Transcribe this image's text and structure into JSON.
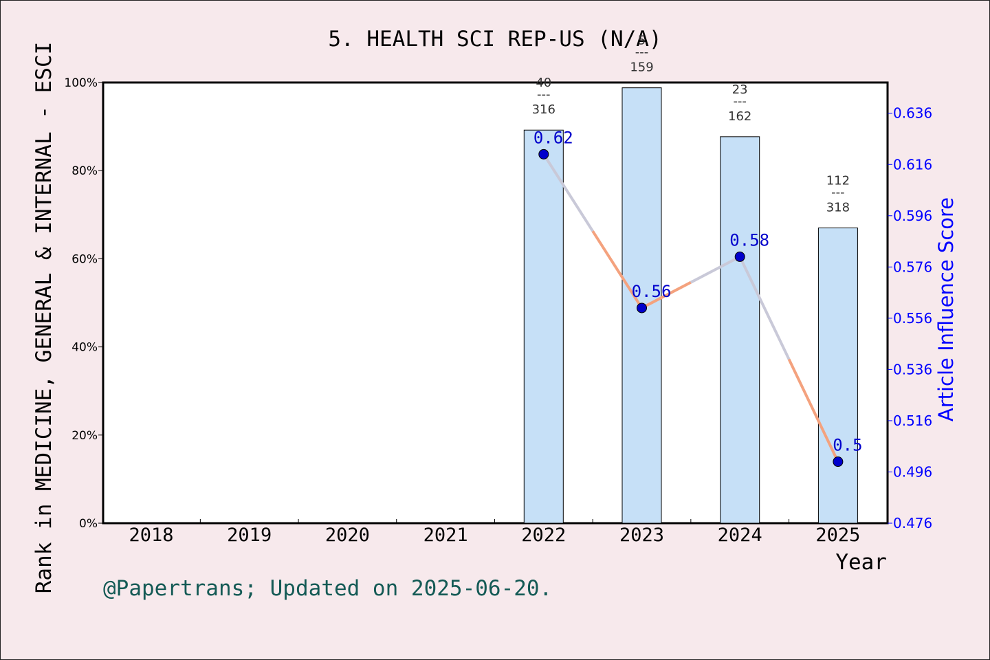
{
  "chart_data": {
    "type": "bar",
    "title": "5. HEALTH SCI REP-US (N/A)",
    "xlabel": "Year",
    "ylabel_left": "Rank in MEDICINE, GENERAL & INTERNAL - ESCI",
    "ylabel_right": "Article Influence Score",
    "categories": [
      "2018",
      "2019",
      "2020",
      "2021",
      "2022",
      "2023",
      "2024",
      "2025"
    ],
    "left_axis": {
      "ylim": [
        0,
        100
      ],
      "ticks": [
        "0%",
        "20%",
        "40%",
        "60%",
        "80%",
        "100%"
      ]
    },
    "right_axis": {
      "ylim": [
        0.476,
        0.648
      ],
      "ticks": [
        "0.476",
        "0.496",
        "0.516",
        "0.536",
        "0.556",
        "0.576",
        "0.596",
        "0.616",
        "0.636"
      ]
    },
    "bars": [
      {
        "year": "2022",
        "value": 89.2,
        "rank_label": "40",
        "total_label": "316",
        "sep": "---"
      },
      {
        "year": "2023",
        "value": 98.8,
        "rank_label": "5",
        "total_label": "159",
        "sep": "---"
      },
      {
        "year": "2024",
        "value": 87.7,
        "rank_label": "23",
        "total_label": "162",
        "sep": "---"
      },
      {
        "year": "2025",
        "value": 67.0,
        "rank_label": "112",
        "total_label": "318",
        "sep": "---"
      }
    ],
    "line": [
      {
        "year": "2022",
        "value": 0.62,
        "label": "0.62"
      },
      {
        "year": "2023",
        "value": 0.56,
        "label": "0.56"
      },
      {
        "year": "2024",
        "value": 0.58,
        "label": "0.58"
      },
      {
        "year": "2025",
        "value": 0.5,
        "label": "0.5"
      }
    ],
    "colors": {
      "bar_fill": "#c6e0f7",
      "bar_stroke": "#000000",
      "line_up": "#c9c9d8",
      "line_down": "#f4a27e",
      "marker": "#0000cc",
      "right_axis": "#0000ff",
      "footer": "#145a55"
    }
  },
  "footer": "@Papertrans; Updated on 2025-06-20."
}
